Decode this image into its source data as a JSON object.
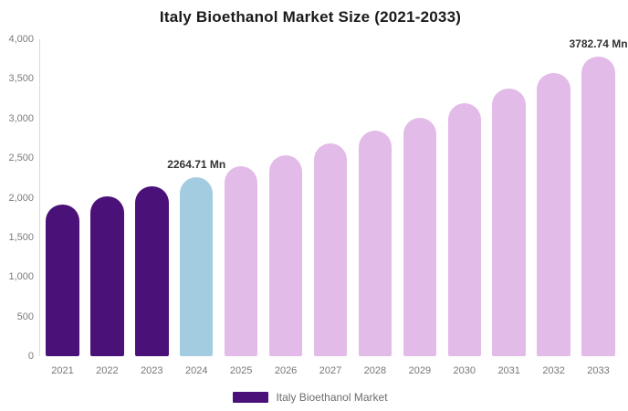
{
  "header": {
    "title": "Italy Bioethanol Market Size (2021-2033)"
  },
  "legend": {
    "label": "Italy Bioethanol Market",
    "swatch_color": "#4a1279"
  },
  "colors": {
    "historical_bar": "#4a1279",
    "highlight_bar": "#a3cce0",
    "forecast_bar": "#e3bbe8",
    "axis_line": "#d9d9d9",
    "tick_text": "#767676",
    "data_label_text": "#333333",
    "title_text": "#1a1a1a",
    "background": "#ffffff"
  },
  "chart_data": {
    "type": "bar",
    "title": "Italy Bioethanol Market Size (2021-2033)",
    "unit": "Mn",
    "categories": [
      "2021",
      "2022",
      "2023",
      "2024",
      "2025",
      "2026",
      "2027",
      "2028",
      "2029",
      "2030",
      "2031",
      "2032",
      "2033"
    ],
    "values": [
      1909,
      2021,
      2139,
      2264.71,
      2398,
      2538,
      2687,
      2845,
      3012,
      3188,
      3375,
      3573,
      3782.74
    ],
    "point_colors": [
      "#4a1279",
      "#4a1279",
      "#4a1279",
      "#a3cce0",
      "#e3bbe8",
      "#e3bbe8",
      "#e3bbe8",
      "#e3bbe8",
      "#e3bbe8",
      "#e3bbe8",
      "#e3bbe8",
      "#e3bbe8",
      "#e3bbe8"
    ],
    "data_labels": [
      {
        "category": "2024",
        "text": "2264.71 Mn"
      },
      {
        "category": "2033",
        "text": "3782.74 Mn"
      }
    ],
    "ylim": [
      0,
      4000
    ],
    "ytick_step": 500,
    "yticks": [
      "4,000",
      "3,500",
      "3,000",
      "2,500",
      "2,000",
      "1,500",
      "1,000",
      "500",
      "0"
    ],
    "xlabel": "",
    "ylabel": "",
    "grid": false,
    "legend_position": "bottom",
    "legend_entries": [
      "Italy Bioethanol Market"
    ]
  }
}
